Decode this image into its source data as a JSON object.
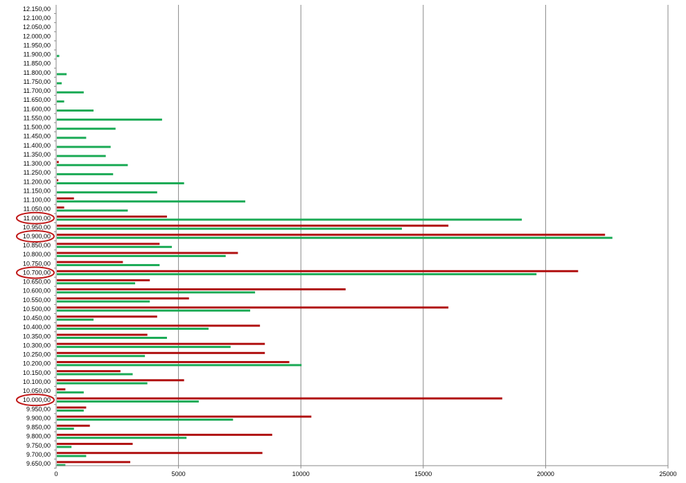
{
  "chart_data": {
    "type": "bar",
    "orientation": "horizontal",
    "categories": [
      "12.150,00",
      "12.100,00",
      "12.050,00",
      "12.000,00",
      "11.950,00",
      "11.900,00",
      "11.850,00",
      "11.800,00",
      "11.750,00",
      "11.700,00",
      "11.650,00",
      "11.600,00",
      "11.550,00",
      "11.500,00",
      "11.450,00",
      "11.400,00",
      "11.350,00",
      "11.300,00",
      "11.250,00",
      "11.200,00",
      "11.150,00",
      "11.100,00",
      "11.050,00",
      "11.000,00",
      "10.950,00",
      "10.900,00",
      "10.850,00",
      "10.800,00",
      "10.750,00",
      "10.700,00",
      "10.650,00",
      "10.600,00",
      "10.550,00",
      "10.500,00",
      "10.450,00",
      "10.400,00",
      "10.350,00",
      "10.300,00",
      "10.250,00",
      "10.200,00",
      "10.150,00",
      "10.100,00",
      "10.050,00",
      "10.000,00",
      "9.950,00",
      "9.900,00",
      "9.850,00",
      "9.800,00",
      "9.750,00",
      "9.700,00",
      "9.650,00"
    ],
    "series": [
      {
        "color": "#b01010",
        "values": [
          0,
          0,
          0,
          0,
          0,
          0,
          0,
          0,
          0,
          0,
          0,
          0,
          0,
          0,
          0,
          0,
          0,
          80,
          0,
          60,
          0,
          700,
          300,
          4500,
          16000,
          22400,
          4200,
          7400,
          2700,
          21300,
          3800,
          11800,
          5400,
          16000,
          4100,
          8300,
          3700,
          8500,
          8500,
          9500,
          2600,
          5200,
          350,
          18200,
          1200,
          10400,
          1350,
          8800,
          3100,
          8400,
          3000
        ]
      },
      {
        "color": "#1aaa55",
        "values": [
          0,
          0,
          0,
          0,
          0,
          100,
          0,
          400,
          200,
          1100,
          300,
          1500,
          4300,
          2400,
          1200,
          2200,
          2000,
          2900,
          2300,
          5200,
          4100,
          7700,
          2900,
          19000,
          14100,
          22700,
          4700,
          6900,
          4200,
          19600,
          3200,
          8100,
          3800,
          7900,
          1500,
          6200,
          4500,
          7100,
          3600,
          10000,
          3100,
          3700,
          1100,
          5800,
          1100,
          7200,
          700,
          5300,
          600,
          1200,
          350
        ]
      }
    ],
    "xlim": [
      0,
      25000
    ],
    "xticks": [
      "0",
      "5000",
      "10000",
      "15000",
      "20000",
      "25000"
    ],
    "ylabels_circled": [
      "11.000,00",
      "10.900,00",
      "10.700,00",
      "10.000,00"
    ],
    "circle_color": "#c01818",
    "grid": "vertical"
  }
}
